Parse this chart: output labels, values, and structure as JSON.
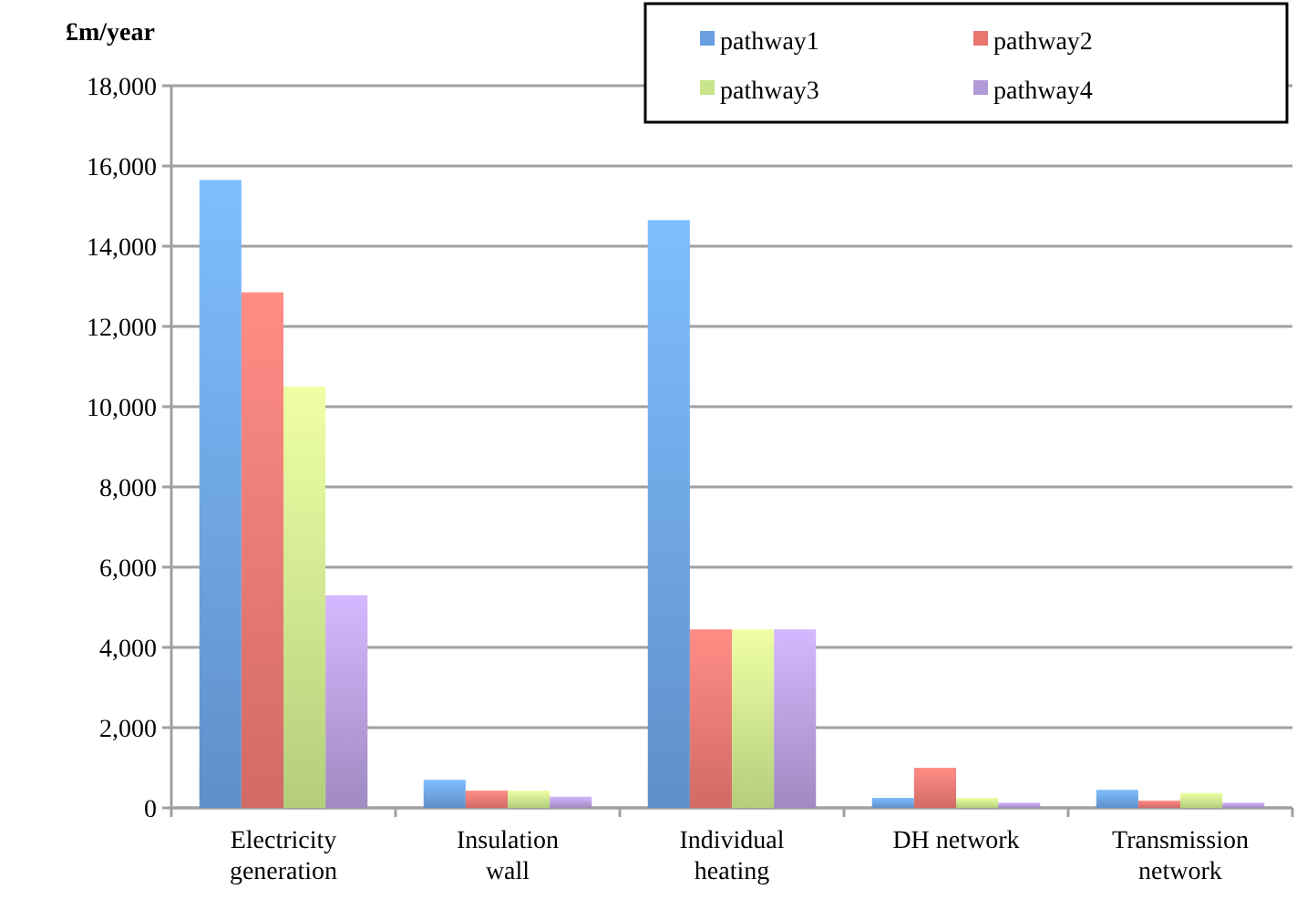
{
  "chart_data": {
    "type": "bar",
    "ylabel": "£m/year",
    "categories": [
      "Electricity generation",
      "Insulation wall",
      "Individual heating",
      "DH network",
      "Transmission network"
    ],
    "series": [
      {
        "name": "pathway1",
        "color": "#6a9fe0",
        "values": [
          15650,
          700,
          14650,
          250,
          450
        ]
      },
      {
        "name": "pathway2",
        "color": "#ea7670",
        "values": [
          12850,
          430,
          4450,
          1000,
          180
        ]
      },
      {
        "name": "pathway3",
        "color": "#c8e58a",
        "values": [
          10500,
          430,
          4450,
          250,
          370
        ]
      },
      {
        "name": "pathway4",
        "color": "#b29ad6",
        "values": [
          5300,
          280,
          4450,
          130,
          130
        ]
      }
    ],
    "ylim": [
      0,
      18000
    ],
    "yticks": [
      {
        "value": 0,
        "label": "0"
      },
      {
        "value": 2000,
        "label": "2,000"
      },
      {
        "value": 4000,
        "label": "4,000"
      },
      {
        "value": 6000,
        "label": "6,000"
      },
      {
        "value": 8000,
        "label": "8,000"
      },
      {
        "value": 10000,
        "label": "10,000"
      },
      {
        "value": 12000,
        "label": "12,000"
      },
      {
        "value": 14000,
        "label": "14,000"
      },
      {
        "value": 16000,
        "label": "16,000"
      },
      {
        "value": 18000,
        "label": "18,000"
      }
    ],
    "grid": "y",
    "legend": "top right"
  }
}
